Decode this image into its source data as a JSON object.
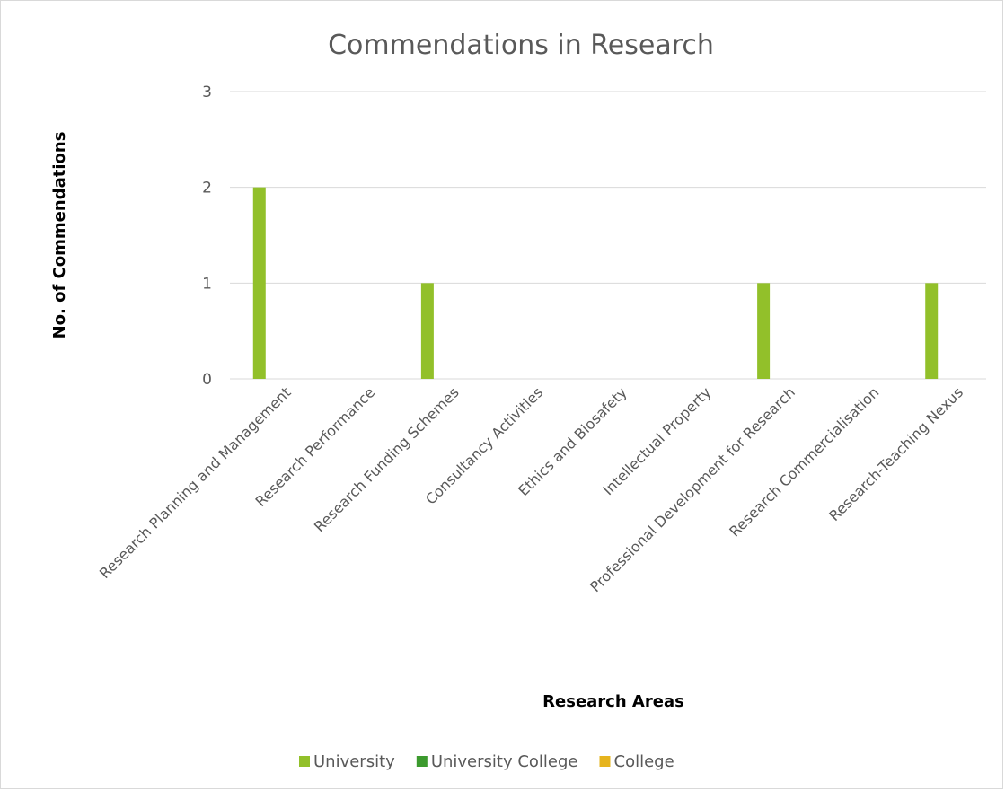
{
  "chart_data": {
    "type": "bar",
    "title": "Commendations in Research",
    "xlabel": "Research Areas",
    "ylabel": "No. of Commendations",
    "categories": [
      "Research Planning and Management",
      "Research Performance",
      "Research Funding Schemes",
      "Consultancy Activities",
      "Ethics and Biosafety",
      "Intellectual Property",
      "Professional Development for Research",
      "Research Commercialisation",
      "Research-Teaching Nexus"
    ],
    "series": [
      {
        "name": "University",
        "color": "#92c02a",
        "values": [
          2,
          0,
          1,
          0,
          0,
          0,
          1,
          0,
          1
        ]
      },
      {
        "name": "University College",
        "color": "#3c9a2e",
        "values": [
          0,
          0,
          0,
          0,
          0,
          0,
          0,
          0,
          0
        ]
      },
      {
        "name": "College",
        "color": "#e6b41e",
        "values": [
          0,
          0,
          0,
          0,
          0,
          0,
          0,
          0,
          0
        ]
      }
    ],
    "ylim": [
      0,
      3
    ],
    "yticks": [
      "0",
      "1",
      "2",
      "3"
    ],
    "grid": true,
    "legend": "bottom"
  }
}
